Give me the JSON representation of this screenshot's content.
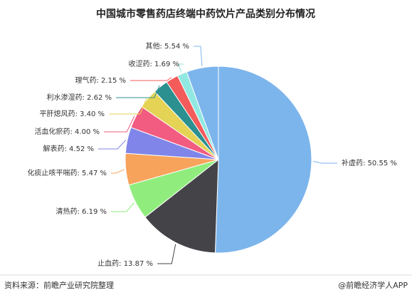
{
  "chart_data": {
    "type": "pie",
    "title": "中国城市零售药店终端中药饮片产品类别分布情况",
    "values": [
      50.55,
      13.87,
      6.19,
      5.47,
      4.52,
      4.0,
      3.4,
      2.62,
      2.15,
      1.69,
      5.54
    ],
    "value_labels": [
      "补虚药: 50.55 %",
      "止血药: 13.87 %",
      "清热药: 6.19 %",
      "化痰止咳平喘药: 5.47 %",
      "解表药: 4.52 %",
      "活血化瘀药: 4.00 %",
      "平肝熄风药: 3.40 %",
      "利水渗湿药: 2.62 %",
      "理气药: 2.15 %",
      "收涩药: 1.69 %",
      "其他: 5.54 %"
    ],
    "colors": [
      "#7cb5ec",
      "#434348",
      "#90ed7d",
      "#f7a35c",
      "#8085e9",
      "#f15c80",
      "#e4d354",
      "#2b908f",
      "#f45b5b",
      "#91e8e1",
      "#7cb5ec"
    ],
    "source": "资料来源：前瞻产业研究院整理",
    "credit": "@前瞻经济学人APP"
  }
}
